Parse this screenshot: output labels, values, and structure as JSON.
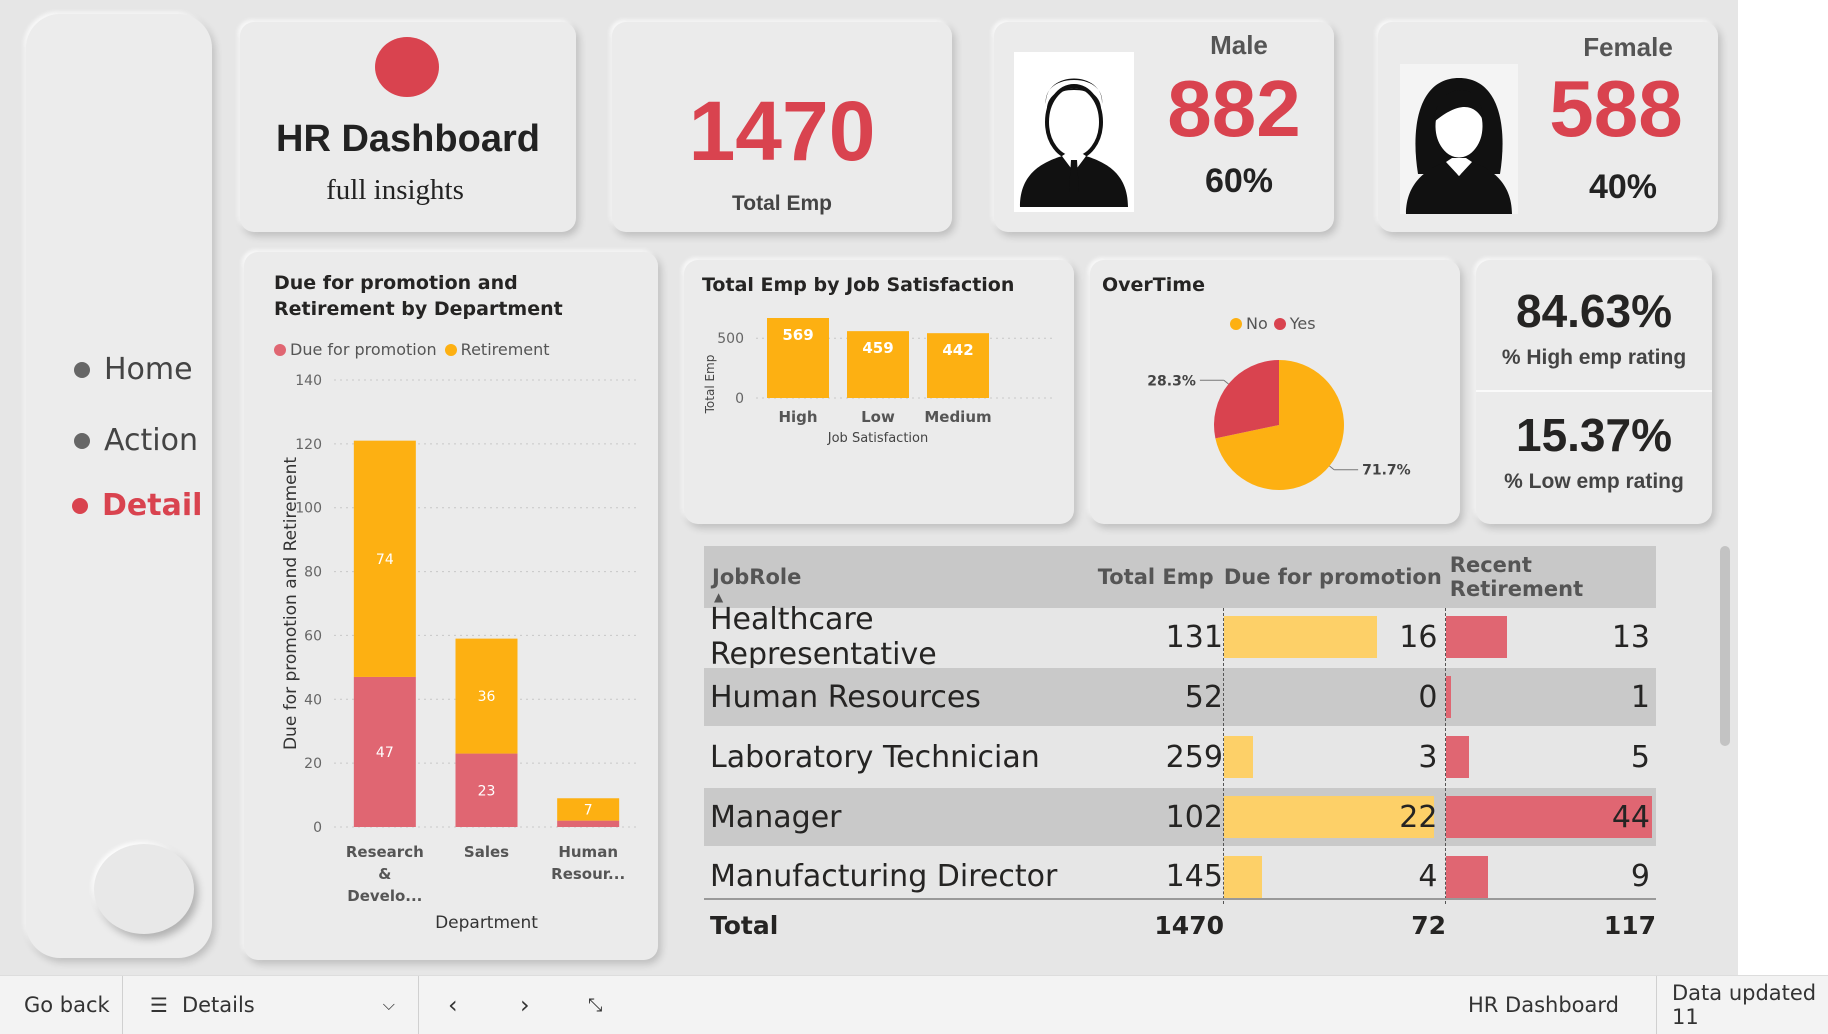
{
  "nav": {
    "items": [
      {
        "label": "Home",
        "active": false
      },
      {
        "label": "Action",
        "active": false
      },
      {
        "label": "Detail",
        "active": true
      }
    ]
  },
  "header": {
    "title": "HR Dashboard",
    "subtitle": "full insights"
  },
  "kpis": {
    "total_emp": {
      "value": "1470",
      "label": "Total Emp"
    },
    "male": {
      "label": "Male",
      "value": "882",
      "pct": "60%"
    },
    "female": {
      "label": "Female",
      "value": "588",
      "pct": "40%"
    },
    "high_rating": {
      "value": "84.63%",
      "label": "% High emp rating"
    },
    "low_rating": {
      "value": "15.37%",
      "label": "% Low emp rating"
    }
  },
  "colors": {
    "accent": "#d9434f",
    "promotion": "#e06672",
    "retirement": "#fdb012",
    "yellow_bar": "#fdd068"
  },
  "chart_data": [
    {
      "type": "bar",
      "stacked": true,
      "title": "Due for promotion and Retirement by Department",
      "xlabel": "Department",
      "ylabel": "Due for promotion and Retirement",
      "ylim": [
        0,
        140
      ],
      "yticks": [
        0,
        20,
        40,
        60,
        80,
        100,
        120,
        140
      ],
      "categories": [
        "Research & Develo...",
        "Sales",
        "Human Resour..."
      ],
      "category_lines": [
        [
          "Research",
          "&",
          "Develo..."
        ],
        [
          "Sales"
        ],
        [
          "Human",
          "Resour..."
        ]
      ],
      "series": [
        {
          "name": "Due for promotion",
          "values": [
            47,
            23,
            2
          ],
          "labels": [
            "47",
            "23",
            ""
          ]
        },
        {
          "name": "Retirement",
          "values": [
            74,
            36,
            7
          ],
          "labels": [
            "74",
            "36",
            "7"
          ]
        }
      ],
      "legend": "top-left",
      "grid": true
    },
    {
      "type": "bar",
      "title": "Total Emp by Job Satisfaction",
      "xlabel": "Job Satisfaction",
      "ylabel": "Total Emp",
      "ylim": [
        0,
        569
      ],
      "yticks": [
        0,
        500
      ],
      "categories": [
        "High",
        "Low",
        "Medium"
      ],
      "values": [
        569,
        459,
        442
      ],
      "grid": true
    },
    {
      "type": "pie",
      "title": "OverTime",
      "categories": [
        "No",
        "Yes"
      ],
      "values": [
        71.7,
        28.3
      ],
      "labels": [
        "71.7%",
        "28.3%"
      ],
      "legend": "top"
    }
  ],
  "table": {
    "columns": [
      "JobRole",
      "Total Emp",
      "Due for promotion",
      "Recent Retirement"
    ],
    "max_promotion": 22,
    "max_retirement": 44,
    "rows": [
      {
        "role": "Healthcare Representative",
        "total": "131",
        "promotion": 16,
        "retirement": 13
      },
      {
        "role": "Human Resources",
        "total": "52",
        "promotion": 0,
        "retirement": 1
      },
      {
        "role": "Laboratory Technician",
        "total": "259",
        "promotion": 3,
        "retirement": 5
      },
      {
        "role": "Manager",
        "total": "102",
        "promotion": 22,
        "retirement": 44
      },
      {
        "role": "Manufacturing Director",
        "total": "145",
        "promotion": 4,
        "retirement": 9
      }
    ],
    "total": {
      "label": "Total",
      "total": "1470",
      "promotion": "72",
      "retirement": "117"
    }
  },
  "footer": {
    "go_back": "Go back",
    "page": "Details",
    "report": "HR Dashboard",
    "updated": "Data updated 11"
  }
}
